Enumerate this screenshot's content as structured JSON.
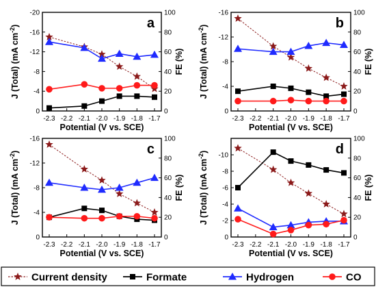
{
  "chart_data": [
    {
      "type": "line",
      "panel_label": "a",
      "xlabel": "Potential (V vs. SCE)",
      "ylabel_left": "J (Total) (mA cm",
      "ylabel_left_sup": "-2",
      "ylabel_left_close": ")",
      "ylabel_right": "FE (%)",
      "x_ticks": [
        "-2.3",
        "-2.2",
        "-2.1",
        "-2.0",
        "-1.9",
        "-1.8",
        "-1.7"
      ],
      "left_ticks": [
        "-20",
        "-16",
        "-12",
        "-8",
        "-4",
        "0"
      ],
      "right_ticks": [
        "100",
        "80",
        "60",
        "40",
        "20",
        "0"
      ],
      "xlim": [
        -2.3,
        -1.7
      ],
      "left_ylim": [
        0,
        -20
      ],
      "right_ylim": [
        0,
        100
      ],
      "x": [
        -2.3,
        -2.1,
        -2.0,
        -1.9,
        -1.8,
        -1.7
      ],
      "series": [
        {
          "name": "Current density",
          "axis": "left",
          "values": [
            -15.0,
            -13.0,
            -11.5,
            -9.0,
            -7.0,
            -4.5
          ]
        },
        {
          "name": "Formate",
          "axis": "right",
          "values": [
            3,
            5,
            10,
            15,
            15,
            14
          ]
        },
        {
          "name": "Hydrogen",
          "axis": "right",
          "values": [
            70,
            64,
            53,
            58,
            55,
            57
          ]
        },
        {
          "name": "CO",
          "axis": "right",
          "values": [
            22,
            27,
            23,
            23,
            26,
            26
          ]
        }
      ]
    },
    {
      "type": "line",
      "panel_label": "b",
      "xlabel": "Potential (V vs. SCE)",
      "ylabel_left": "J (Total) (mA cm",
      "ylabel_left_sup": "-2",
      "ylabel_left_close": ")",
      "ylabel_right": "FE (%)",
      "x_ticks": [
        "-2.3",
        "-2.2",
        "-2.1",
        "-2.0",
        "-1.9",
        "-1.8",
        "-1.7"
      ],
      "left_ticks": [
        "-16",
        "-12",
        "-8",
        "-4",
        "0"
      ],
      "right_ticks": [
        "100",
        "80",
        "60",
        "40",
        "20",
        "0"
      ],
      "xlim": [
        -2.3,
        -1.7
      ],
      "left_ylim": [
        0,
        -16
      ],
      "right_ylim": [
        0,
        100
      ],
      "x": [
        -2.3,
        -2.1,
        -2.0,
        -1.9,
        -1.8,
        -1.7
      ],
      "series": [
        {
          "name": "Current density",
          "axis": "left",
          "values": [
            -15.0,
            -10.5,
            -8.7,
            -6.9,
            -5.4,
            -4.0
          ]
        },
        {
          "name": "Formate",
          "axis": "right",
          "values": [
            20,
            25,
            23,
            19,
            15,
            17
          ]
        },
        {
          "name": "Hydrogen",
          "axis": "right",
          "values": [
            63,
            60,
            60,
            66,
            69,
            67
          ]
        },
        {
          "name": "CO",
          "axis": "right",
          "values": [
            10,
            10,
            11,
            10,
            10,
            10
          ]
        }
      ]
    },
    {
      "type": "line",
      "panel_label": "c",
      "xlabel": "Potential (V vs. SCE)",
      "ylabel_left": "J (Total) (mA cm",
      "ylabel_left_sup": "-2",
      "ylabel_left_close": ")",
      "ylabel_right": "FE (%)",
      "x_ticks": [
        "-2.3",
        "-2.2",
        "-2.1",
        "-2.0",
        "-1.9",
        "-1.8",
        "-1.7"
      ],
      "left_ticks": [
        "-16",
        "-12",
        "-8",
        "-4",
        "0"
      ],
      "right_ticks": [
        "100",
        "80",
        "60",
        "40",
        "20",
        "0"
      ],
      "xlim": [
        -2.3,
        -1.7
      ],
      "left_ylim": [
        0,
        -16
      ],
      "right_ylim": [
        0,
        100
      ],
      "x": [
        -2.3,
        -2.1,
        -2.0,
        -1.9,
        -1.8,
        -1.7
      ],
      "series": [
        {
          "name": "Current density",
          "axis": "left",
          "values": [
            -15.0,
            -11.0,
            -9.2,
            -7.0,
            -5.5,
            -4.0
          ]
        },
        {
          "name": "Formate",
          "axis": "right",
          "values": [
            20,
            29,
            27,
            21,
            18,
            17
          ]
        },
        {
          "name": "Hydrogen",
          "axis": "right",
          "values": [
            55,
            50,
            48,
            50,
            55,
            60
          ]
        },
        {
          "name": "CO",
          "axis": "right",
          "values": [
            20,
            19,
            19,
            21,
            21,
            19
          ]
        }
      ]
    },
    {
      "type": "line",
      "panel_label": "d",
      "xlabel": "Potential (V vs. SCE)",
      "ylabel_left": "J (Total) (mA cm",
      "ylabel_left_sup": "-2",
      "ylabel_left_close": ")",
      "ylabel_right": "FE (%)",
      "x_ticks": [
        "-2.3",
        "-2.2",
        "-2.1",
        "-2.0",
        "-1.9",
        "-1.8",
        "-1.7"
      ],
      "left_ticks": [
        "-10",
        "-8",
        "-6",
        "-4",
        "-2",
        "0"
      ],
      "right_ticks": [
        "100",
        "80",
        "60",
        "40",
        "20",
        "0"
      ],
      "xlim": [
        -2.3,
        -1.7
      ],
      "left_ylim": [
        0,
        -12
      ],
      "right_ylim": [
        0,
        100
      ],
      "x": [
        -2.3,
        -2.1,
        -2.0,
        -1.9,
        -1.8,
        -1.7
      ],
      "series": [
        {
          "name": "Current density",
          "axis": "left",
          "values": [
            -10.8,
            -8.2,
            -6.6,
            -5.3,
            -4.0,
            -2.8
          ]
        },
        {
          "name": "Formate",
          "axis": "right",
          "values": [
            50,
            86,
            77,
            73,
            68,
            65
          ]
        },
        {
          "name": "Hydrogen",
          "axis": "right",
          "values": [
            29,
            10,
            12,
            15,
            16,
            16
          ]
        },
        {
          "name": "CO",
          "axis": "right",
          "values": [
            18,
            3,
            7,
            12,
            13,
            17
          ]
        }
      ]
    }
  ],
  "legend": {
    "placement": "bottom",
    "items": [
      {
        "name": "Current density",
        "color": "#8b1a1a",
        "marker": "star",
        "dashed": true
      },
      {
        "name": "Formate",
        "color": "#000000",
        "marker": "square",
        "dashed": false
      },
      {
        "name": "Hydrogen",
        "color": "#1f2bff",
        "marker": "triangle",
        "dashed": false
      },
      {
        "name": "CO",
        "color": "#ff1a1a",
        "marker": "circle",
        "dashed": false
      }
    ]
  },
  "colors": {
    "Current density": "#8b1a1a",
    "Formate": "#000000",
    "Hydrogen": "#1f2bff",
    "CO": "#ff1a1a"
  }
}
